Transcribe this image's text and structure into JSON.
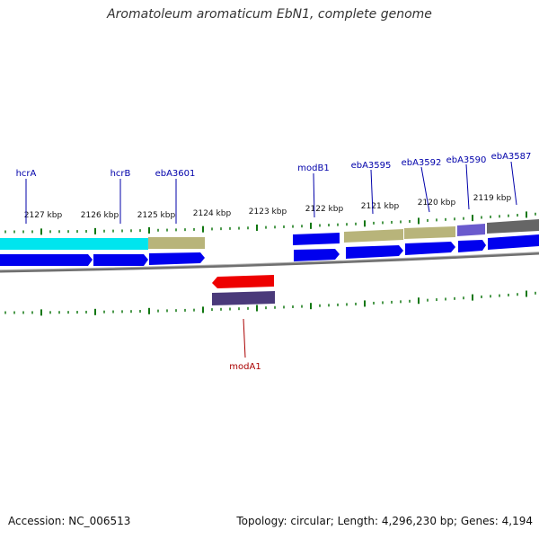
{
  "title": "Aromatoleum aromaticum EbN1, complete genome",
  "footer": {
    "accession": "Accession: NC_006513",
    "summary": "Topology: circular; Length: 4,296,230 bp; Genes: 4,194"
  },
  "scale_labels": [
    "2127 kbp",
    "2126 kbp",
    "2125 kbp",
    "2124 kbp",
    "2123 kbp",
    "2122 kbp",
    "2121 kbp",
    "2120 kbp",
    "2119 kbp"
  ],
  "gene_labels": [
    "hcrA",
    "hcrB",
    "ebA3601",
    "modB1",
    "ebA3595",
    "ebA3592",
    "ebA3590",
    "ebA3587",
    "modA1"
  ],
  "colors": {
    "gene_blue": "#0000ee",
    "cyan": "#00e5ee",
    "khaki": "#b8b47a",
    "slate": "#6a5acd",
    "dark_gray": "#666666",
    "red": "#ee0000",
    "navy_purple": "#4a3a7a",
    "tick_green": "#117711",
    "label_blue": "#0000aa",
    "label_red": "#aa0000",
    "backbone": "#777777"
  }
}
